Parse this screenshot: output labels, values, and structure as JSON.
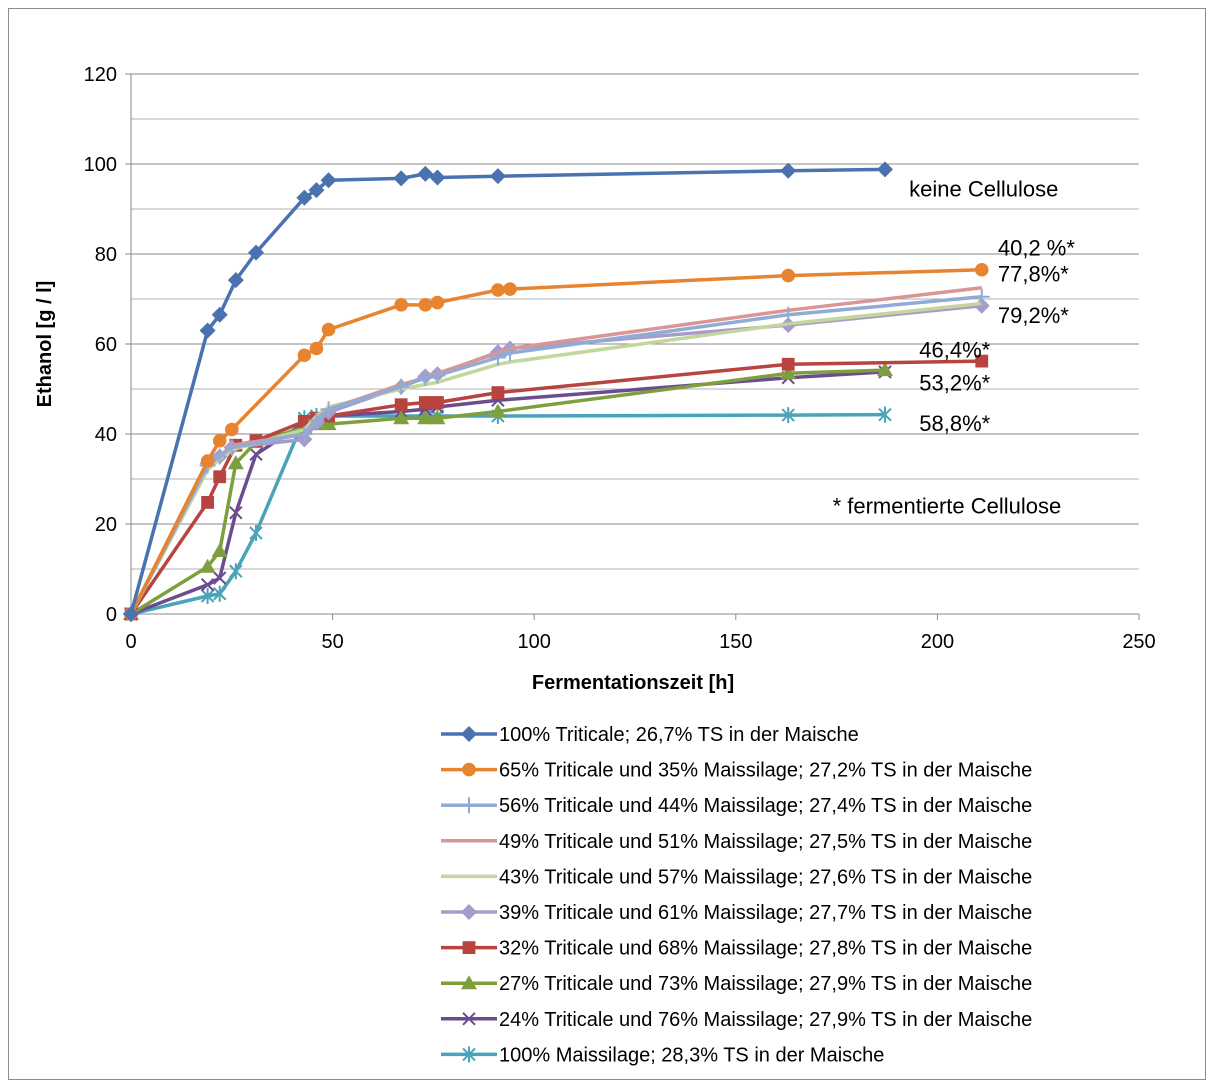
{
  "chart_data": {
    "type": "line",
    "title": "",
    "xlabel": "Fermentationszeit [h]",
    "ylabel": "Ethanol [g / l]",
    "xlim": [
      0,
      250
    ],
    "ylim": [
      0,
      120
    ],
    "xticks": [
      0,
      50,
      100,
      150,
      200,
      250
    ],
    "yticks": [
      0,
      20,
      40,
      60,
      80,
      100,
      120
    ],
    "grid": "horizontal",
    "legend_position": "bottom",
    "series": [
      {
        "name": "100% Triticale; 26,7% TS in der Maische",
        "color": "#4a72b0",
        "marker": "diamond",
        "x": [
          0,
          19,
          22,
          26,
          31,
          43,
          46,
          49,
          67,
          73,
          76,
          91,
          163,
          187
        ],
        "y": [
          0,
          63,
          66.5,
          74.2,
          80.3,
          92.5,
          94.2,
          96.4,
          96.8,
          97.8,
          97,
          97.3,
          98.5,
          98.8
        ]
      },
      {
        "name": "65% Triticale und 35% Maissilage; 27,2% TS in der Maische",
        "color": "#e8832f",
        "marker": "circle",
        "x": [
          0,
          19,
          22,
          25,
          43,
          46,
          49,
          67,
          73,
          76,
          91,
          94,
          163,
          211
        ],
        "y": [
          0,
          34,
          38.5,
          41,
          57.5,
          59,
          63.2,
          68.7,
          68.7,
          69.2,
          72,
          72.2,
          75.2,
          76.5
        ]
      },
      {
        "name": "56% Triticale und 44% Maissilage; 27,4% TS in der Maische",
        "color": "#8fabd6",
        "marker": "plus",
        "x": [
          0,
          19,
          22,
          25,
          43,
          46,
          49,
          67,
          73,
          76,
          91,
          94,
          163,
          211
        ],
        "y": [
          0,
          33,
          35,
          37,
          40,
          43,
          45.5,
          50.5,
          52.5,
          53,
          57,
          58,
          66.5,
          70.5
        ]
      },
      {
        "name": "49% Triticale und 51% Maissilage; 27,5% TS in der Maische",
        "color": "#d99694",
        "marker": "none",
        "x": [
          0,
          19,
          22,
          25,
          43,
          46,
          49,
          67,
          73,
          76,
          91,
          94,
          163,
          211
        ],
        "y": [
          0,
          33,
          35,
          37.5,
          40,
          43.5,
          45.5,
          51,
          52.5,
          53.5,
          58,
          59,
          67.5,
          72.5
        ]
      },
      {
        "name": "43% Triticale und 57% Maissilage; 27,6% TS in der Maische",
        "color": "#c3d69b",
        "marker": "none",
        "x": [
          0,
          19,
          22,
          25,
          43,
          46,
          49,
          67,
          73,
          76,
          91,
          94,
          163,
          211
        ],
        "y": [
          0,
          32,
          34.5,
          36.5,
          41,
          44,
          46,
          50,
          51,
          51.5,
          55.5,
          56,
          64.5,
          69
        ]
      },
      {
        "name": "39% Triticale und 61% Maissilage; 27,7% TS in der Maische",
        "color": "#a79bca",
        "marker": "diamond",
        "x": [
          0,
          19,
          22,
          25,
          43,
          46,
          49,
          67,
          73,
          76,
          91,
          94,
          163,
          211
        ],
        "y": [
          0,
          33.5,
          35,
          37,
          38.8,
          42.5,
          44.8,
          50.5,
          52.8,
          53.3,
          58.2,
          59,
          64.2,
          68.5
        ]
      },
      {
        "name": "32% Triticale und 68% Maissilage; 27,8% TS in der Maische",
        "color": "#b84440",
        "marker": "square",
        "x": [
          0,
          19,
          22,
          26,
          31,
          43,
          46,
          49,
          67,
          73,
          76,
          91,
          163,
          211
        ],
        "y": [
          0,
          24.8,
          30.5,
          37.5,
          38.5,
          42.8,
          43.5,
          44,
          46.5,
          47,
          47,
          49.2,
          55.5,
          56.2
        ]
      },
      {
        "name": "27% Triticale und 73% Maissilage; 27,9% TS in der Maische",
        "color": "#7e9f3e",
        "marker": "triangle",
        "x": [
          0,
          19,
          22,
          26,
          31,
          43,
          46,
          49,
          67,
          73,
          76,
          91,
          163,
          187
        ],
        "y": [
          0,
          10.5,
          14,
          33.5,
          38.2,
          41.5,
          42.2,
          42.2,
          43.5,
          43.5,
          43.5,
          45,
          53.5,
          54.2
        ]
      },
      {
        "name": "24% Triticale und 76% Maissilage; 27,9% TS in der Maische",
        "color": "#6b4c8f",
        "marker": "x",
        "x": [
          0,
          19,
          22,
          26,
          31,
          43,
          46,
          49,
          67,
          73,
          76,
          91,
          163,
          187
        ],
        "y": [
          0,
          6.5,
          8,
          22.5,
          35.5,
          42.5,
          43.5,
          44,
          45,
          45.5,
          46,
          47.5,
          52.5,
          53.8
        ]
      },
      {
        "name": "100% Maissilage; 28,3% TS in der Maische",
        "color": "#4aa3b8",
        "marker": "asterisk",
        "x": [
          0,
          19,
          22,
          26,
          31,
          43,
          46,
          49,
          67,
          73,
          76,
          91,
          163,
          187
        ],
        "y": [
          0,
          4,
          4.5,
          9.5,
          18,
          43.5,
          44,
          44,
          44,
          44,
          44,
          44,
          44.2,
          44.3
        ]
      }
    ],
    "annotations": [
      {
        "text": "keine Cellulose",
        "x": 193,
        "y": 94.6
      },
      {
        "text": "40,2 %*",
        "x": 215,
        "y": 81.5
      },
      {
        "text": "77,8%*",
        "x": 215,
        "y": 75.7
      },
      {
        "text": "79,2%*",
        "x": 215,
        "y": 66.4
      },
      {
        "text": "46,4%*",
        "x": 195.5,
        "y": 58.8
      },
      {
        "text": "53,2%*",
        "x": 195.5,
        "y": 51.5
      },
      {
        "text": "58,8%*",
        "x": 195.5,
        "y": 42.5
      },
      {
        "text": "* fermentierte Cellulose",
        "x": 174,
        "y": 24.1
      }
    ]
  }
}
